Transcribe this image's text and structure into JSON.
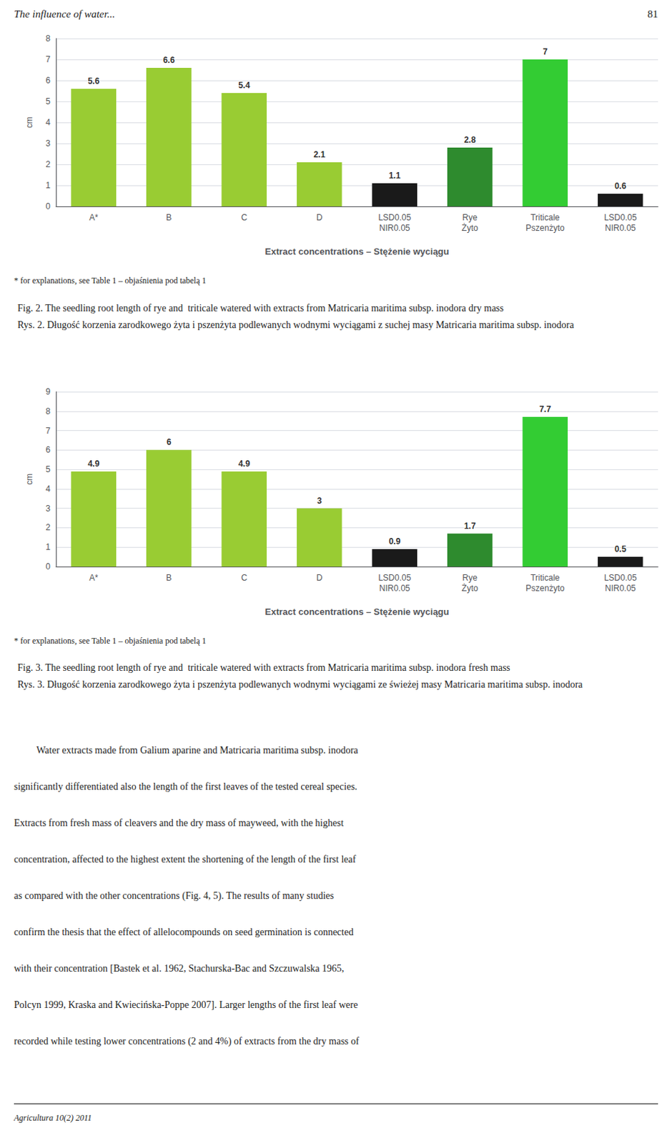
{
  "chart_data": [
    {
      "type": "bar",
      "title": "Fig. 2. The seedling root length of rye and  triticale watered with extracts from Matricaria maritima subsp. inodora dry mass",
      "subtitle": "Rys. 2. Długość korzenia zarodkowego żyta i pszenżyta podlewanych wodnymi wyciągami z suchej masy Matricaria maritima subsp. inodora",
      "categories": [
        "A*",
        "B",
        "C",
        "D",
        "LSD0.05\nNIR0.05",
        "Rye\nŻyto",
        "Triticale\nPszenżyto",
        "LSD0.05\nNIR0.05"
      ],
      "values": [
        5.6,
        6.6,
        5.4,
        2.1,
        1.1,
        2.8,
        7.0,
        0.6
      ],
      "colors": [
        "#99cc33",
        "#99cc33",
        "#99cc33",
        "#99cc33",
        "#1a1a1a",
        "#2e8b2e",
        "#33cc33",
        "#1a1a1a"
      ],
      "xlabel": "Extract concentrations – Stężenie wyciągu",
      "ylabel": "cm",
      "ylim": [
        0,
        8
      ],
      "yticks": [
        0,
        1,
        2,
        3,
        4,
        5,
        6,
        7,
        8
      ],
      "grid": true,
      "data_labels": true,
      "annotations": [
        "The influence of water...",
        "81",
        "* for explanations, see Table 1 – objaśnienia pod tabelą 1"
      ]
    },
    {
      "type": "bar",
      "title": "Fig. 3. The seedling root length of rye and  triticale watered with extracts from Matricaria maritima subsp. inodora fresh mass",
      "subtitle": "Rys. 3. Długość korzenia zarodkowego żyta i pszenżyta podlewanych wodnymi wyciągami ze świeżej masy Matricaria maritima subsp. inodora",
      "categories": [
        "A*",
        "B",
        "C",
        "D",
        "LSD0.05\nNIR0.05",
        "Rye\nŻyto",
        "Triticale\nPszenżyto",
        "LSD0.05\nNIR0.05"
      ],
      "values": [
        4.9,
        6.0,
        4.9,
        3.0,
        0.9,
        1.7,
        7.7,
        0.5
      ],
      "colors": [
        "#99cc33",
        "#99cc33",
        "#99cc33",
        "#99cc33",
        "#1a1a1a",
        "#2e8b2e",
        "#33cc33",
        "#1a1a1a"
      ],
      "xlabel": "Extract concentrations – Stężenie wyciągu",
      "ylabel": "cm",
      "ylim": [
        0,
        9
      ],
      "yticks": [
        0,
        1,
        2,
        3,
        4,
        5,
        6,
        7,
        8,
        9
      ],
      "grid": true,
      "data_labels": true,
      "annotations": [
        "* for explanations, see Table 1 – objaśnienia pod tabelą 1",
        "Water extracts made from Galium aparine and Matricaria maritima subsp. inodora",
        "significantly differentiated also the length of the first leaves of the tested cereal species.",
        "Extracts from fresh mass of cleavers and the dry mass of mayweed, with the highest",
        "concentration, affected to the highest extent the shortening of the length of the first leaf",
        "as compared with the other concentrations (Fig. 4, 5). The results of many studies",
        "confirm the thesis that the effect of allelocompounds on seed germination is connected",
        "with their concentration [Bastek et al. 1962, Stachurska-Bac and Szczuwalska 1965,",
        "Polcyn 1999, Kraska and Kwiecińska-Poppe 2007]. Larger lengths of the first leaf were",
        "recorded while testing lower concentrations (2 and 4%) of extracts from the dry mass of",
        "Agricultura 10(2) 2011"
      ]
    }
  ]
}
